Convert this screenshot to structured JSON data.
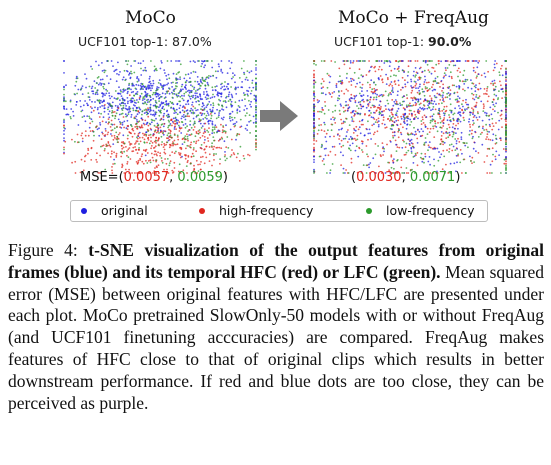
{
  "left_panel": {
    "title": "MoCo",
    "subtitle_prefix": "UCF101 top-1: ",
    "subtitle_value": "87.0%",
    "mse_prefix": "MSE=(",
    "mse_hfc": "0.0057",
    "mse_sep": ", ",
    "mse_lfc": "0.0059",
    "mse_suffix": ")"
  },
  "right_panel": {
    "title": "MoCo + FreqAug",
    "subtitle_prefix": "UCF101 top-1: ",
    "subtitle_value": "90.0%",
    "mse_prefix": "(",
    "mse_hfc": "0.0030",
    "mse_sep": ", ",
    "mse_lfc": "0.0071",
    "mse_suffix": ")"
  },
  "legend": {
    "items": [
      {
        "label": "original",
        "color": "#1f1fe0"
      },
      {
        "label": "high-frequency",
        "color": "#e0271f"
      },
      {
        "label": "low-frequency",
        "color": "#2c9a2c"
      }
    ]
  },
  "arrow_color": "#7a7a7a",
  "caption": {
    "label": "Figure 4: ",
    "bold_text": "t-SNE visualization of the output features from original frames (blue) and its temporal HFC (red) or LFC (green).",
    "body_text": " Mean squared error (MSE) between original features with HFC/LFC are presented under each plot. MoCo pretrained SlowOnly-50 models with or without FreqAug (and UCF101 finetuning acccuracies) are compared. FreqAug makes features of HFC close to that of original clips which results in better downstream performance. If red and blue dots are too close, they can be perceived as purple."
  }
}
